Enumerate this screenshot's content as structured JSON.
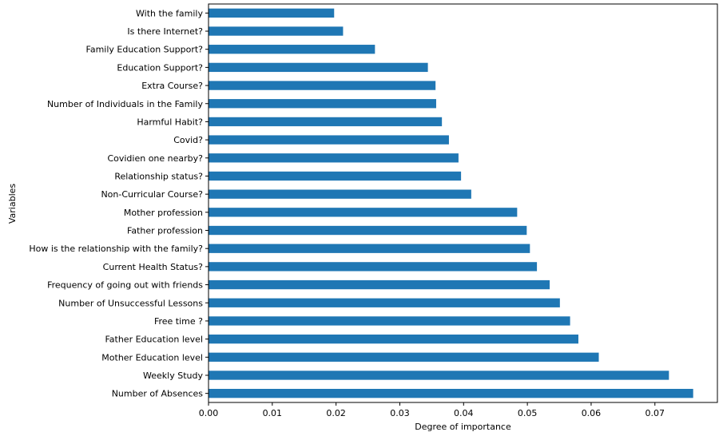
{
  "chart_data": {
    "type": "bar",
    "orientation": "horizontal",
    "title": "",
    "xlabel": "Degree of importance",
    "ylabel": "Variables",
    "xlim": [
      0,
      0.0798
    ],
    "xticks": [
      "0.00",
      "0.01",
      "0.02",
      "0.03",
      "0.04",
      "0.05",
      "0.06",
      "0.07"
    ],
    "grid": false,
    "bar_color": "#1f77b4",
    "categories": [
      "With the family",
      "Is there Internet?",
      "Family Education Support?",
      "Education Support?",
      "Extra Course?",
      "Number of Individuals in the Family",
      "Harmful Habit?",
      "Covid?",
      "Covidien one nearby?",
      "Relationship status?",
      "Non-Curricular Course?",
      "Mother profession",
      "Father profession",
      "How is the relationship with the family?",
      "Current Health Status?",
      "Frequency of going out with friends",
      "Number of Unsuccessful Lessons",
      "Free time ?",
      "Father Education level",
      "Mother Education level",
      "Weekly Study",
      "Number of Absences"
    ],
    "values": [
      0.0197,
      0.0211,
      0.0261,
      0.0344,
      0.0356,
      0.0357,
      0.0366,
      0.0377,
      0.0392,
      0.0396,
      0.0412,
      0.0484,
      0.0499,
      0.0504,
      0.0515,
      0.0535,
      0.0551,
      0.0567,
      0.058,
      0.0612,
      0.0722,
      0.076
    ]
  }
}
